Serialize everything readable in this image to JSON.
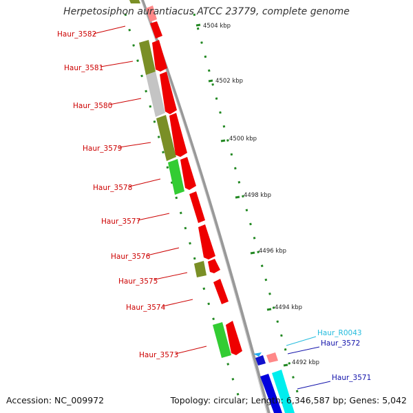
{
  "title": "Herpetosiphon aurantiacus ATCC 23779, complete genome",
  "footer": {
    "accession": "Accession: NC_009972",
    "summary": "Topology: circular; Length: 6,346,587 bp; Genes: 5,042"
  },
  "scale_ticks": [
    "4504 kbp",
    "4502 kbp",
    "4500 kbp",
    "4498 kbp",
    "4496 kbp",
    "4494 kbp",
    "4492 kbp"
  ],
  "gene_labels": [
    {
      "text": "Haur_3582",
      "color": "#cc0000"
    },
    {
      "text": "Haur_3581",
      "color": "#cc0000"
    },
    {
      "text": "Haur_3580",
      "color": "#cc0000"
    },
    {
      "text": "Haur_3579",
      "color": "#cc0000"
    },
    {
      "text": "Haur_3578",
      "color": "#cc0000"
    },
    {
      "text": "Haur_3577",
      "color": "#cc0000"
    },
    {
      "text": "Haur_3576",
      "color": "#cc0000"
    },
    {
      "text": "Haur_3575",
      "color": "#cc0000"
    },
    {
      "text": "Haur_3574",
      "color": "#cc0000"
    },
    {
      "text": "Haur_3573",
      "color": "#cc0000"
    },
    {
      "text": "Haur_R0043",
      "color": "#22bbdd"
    },
    {
      "text": "Haur_3572",
      "color": "#1111aa"
    },
    {
      "text": "Haur_3571",
      "color": "#1111aa"
    }
  ],
  "colors": {
    "cds": "#ff0000",
    "cog_olive": "#7a8f26",
    "cog_grey": "#bdbdbd",
    "cog_green": "#33cc33",
    "cog_cyan": "#00eeee",
    "cds_blue": "#0000dd",
    "trna": "#ff8888",
    "backbone": "#888888",
    "tick_dash": "#228822"
  }
}
